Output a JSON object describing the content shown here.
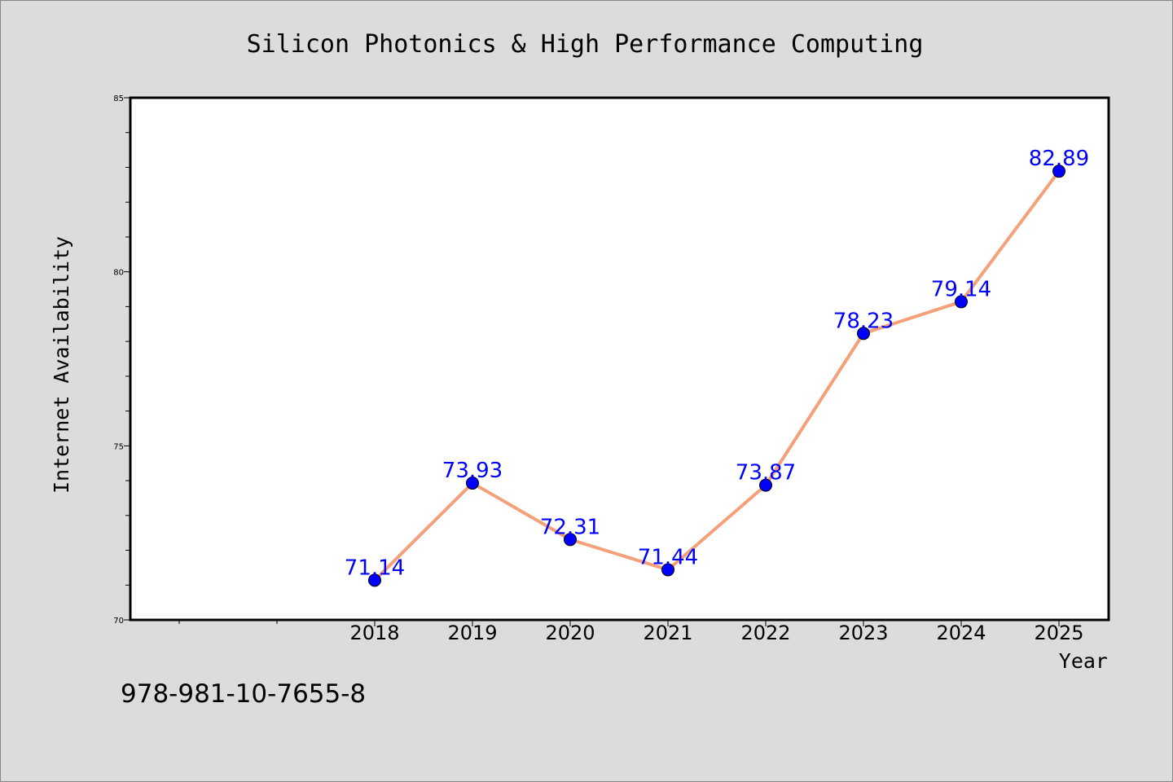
{
  "chart_data": {
    "type": "line",
    "title": "Silicon Photonics & High Performance Computing",
    "xlabel": "Year",
    "ylabel": "Internet Availability",
    "categories": [
      "2018",
      "2019",
      "2020",
      "2021",
      "2022",
      "2023",
      "2024",
      "2025"
    ],
    "series": [
      {
        "values": [
          71.14,
          73.93,
          72.31,
          71.44,
          73.87,
          78.23,
          79.14,
          82.89
        ]
      }
    ],
    "data_labels": [
      "71.14",
      "73.93",
      "72.31",
      "71.44",
      "73.87",
      "78.23",
      "79.14",
      "82.89"
    ],
    "ylim": [
      70,
      85
    ],
    "yticks": [
      "70",
      "75",
      "80",
      "85"
    ],
    "grid": false,
    "line_color": "#f4a07a",
    "marker_color": "#0000ff",
    "label_color": "#0000ff",
    "plot_background": "#ffffff",
    "figure_background": "#dcdcdc"
  },
  "footer": {
    "isbn": "978-981-10-7655-8"
  }
}
